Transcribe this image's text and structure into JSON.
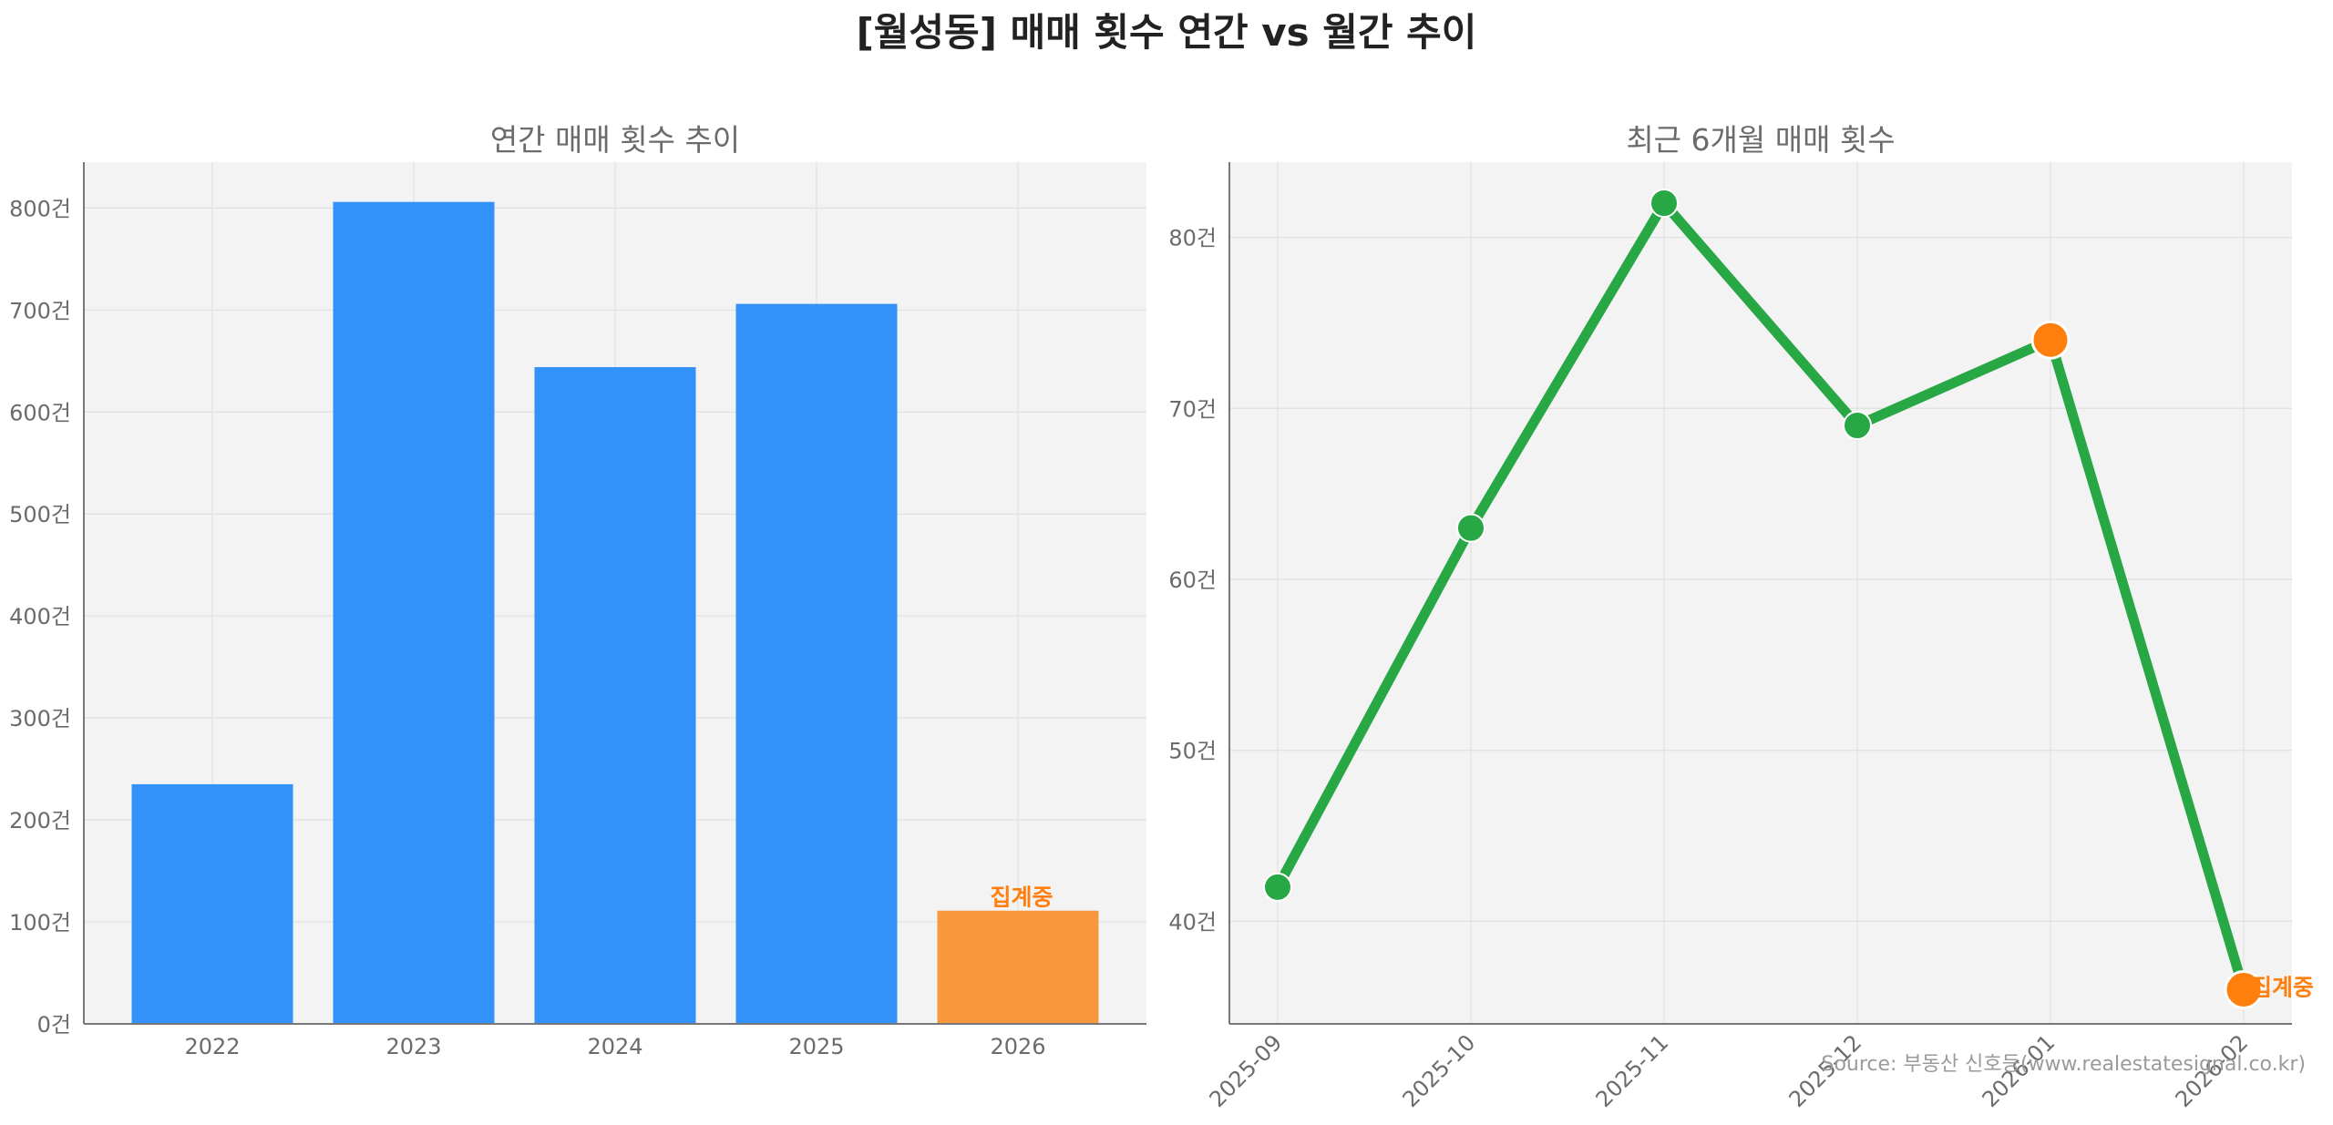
{
  "title": "[월성동] 매매 횟수 연간 vs 월간 추이",
  "source": "Source: 부동산 신호등(www.realestatesignal.co.kr)",
  "colors": {
    "bar": "#3392f9",
    "bar_partial": "#f9973d",
    "line": "#28a745",
    "highlight": "#ff7f0e",
    "partial_label": "#ff7f0e",
    "panel_bg": "#f3f3f3"
  },
  "chart_data": [
    {
      "type": "bar",
      "title": "연간 매매 횟수 추이",
      "categories": [
        "2022",
        "2023",
        "2024",
        "2025",
        "2026"
      ],
      "values": [
        235,
        806,
        644,
        706,
        111
      ],
      "ylim": [
        0,
        845
      ],
      "yticks": [
        0,
        100,
        200,
        300,
        400,
        500,
        600,
        700,
        800
      ],
      "tick_suffix": "건",
      "partial_index": 4,
      "partial_label": "집계중",
      "grid": true
    },
    {
      "type": "line",
      "title": "최근 6개월 매매 횟수",
      "categories": [
        "2025-09",
        "2025-10",
        "2025-11",
        "2025-12",
        "2026-01",
        "2026-02"
      ],
      "values": [
        42,
        63,
        82,
        69,
        74,
        36
      ],
      "ylim": [
        34.0,
        84.4
      ],
      "yticks": [
        40,
        50,
        60,
        70,
        80
      ],
      "tick_suffix": "건",
      "highlight_indices": [
        4,
        5
      ],
      "partial_index": 5,
      "partial_label": "집계중",
      "grid": true
    }
  ]
}
